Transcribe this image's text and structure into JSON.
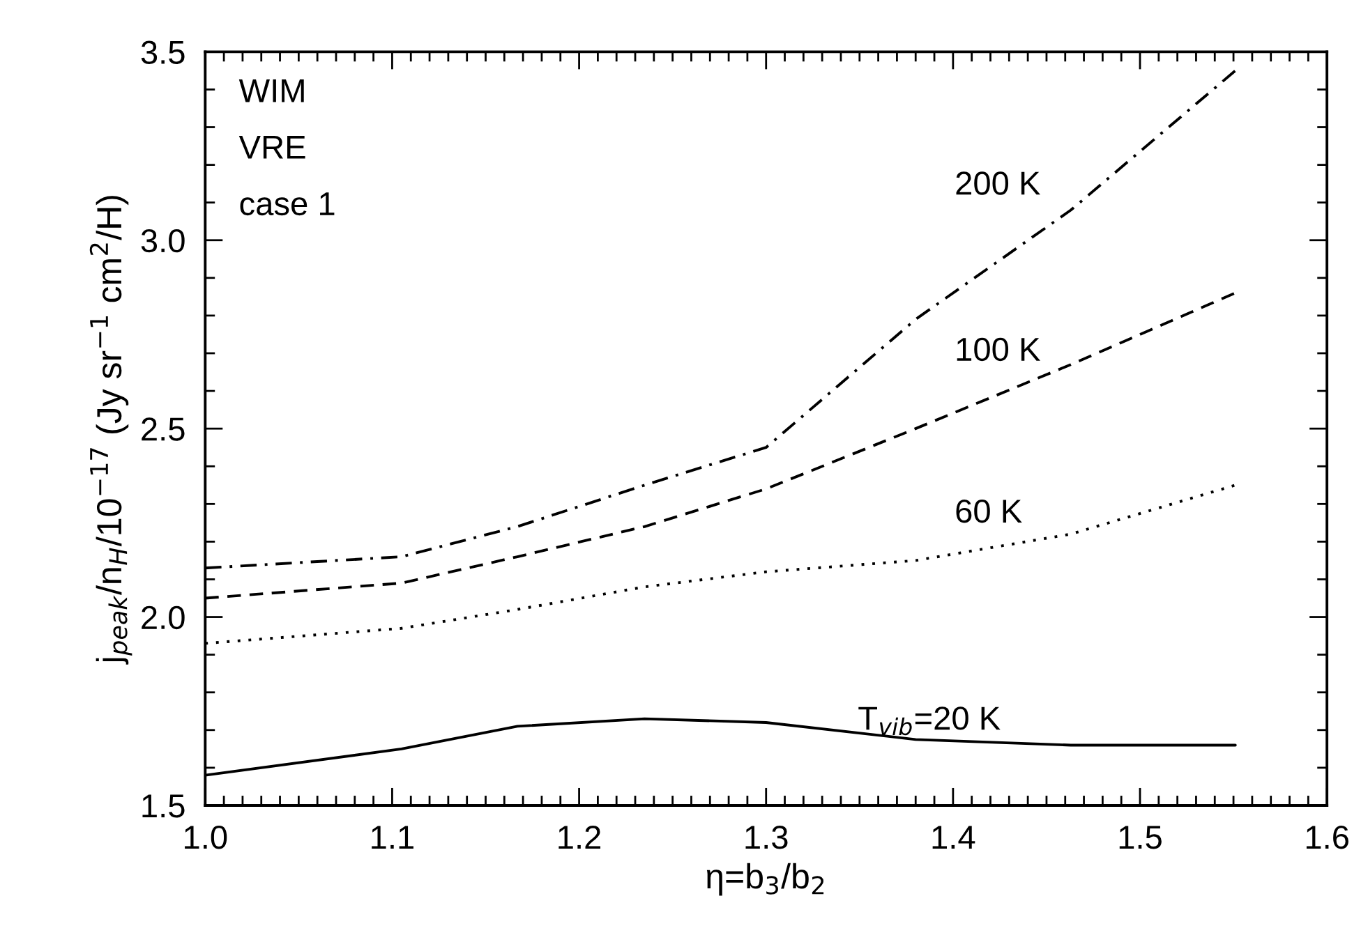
{
  "chart_data": {
    "type": "line",
    "xlabel": "η=b$_{3}$/b$_{2}$",
    "ylabel": "j$_{peak}$/n$_{H}$/10$^{−17}$ (Jy sr$^{−1}$ cm$^{2}$/H)",
    "x": [
      1.0,
      1.105,
      1.167,
      1.235,
      1.3,
      1.38,
      1.463,
      1.551
    ],
    "series": [
      {
        "name": "200 K",
        "color": "#000000",
        "line_style": "dashdot",
        "values": [
          2.13,
          2.16,
          2.24,
          2.35,
          2.45,
          2.79,
          3.08,
          3.45
        ]
      },
      {
        "name": "100 K",
        "color": "#000000",
        "line_style": "dashed",
        "values": [
          2.05,
          2.09,
          2.16,
          2.24,
          2.34,
          2.5,
          2.67,
          2.86
        ]
      },
      {
        "name": "60 K",
        "color": "#000000",
        "line_style": "dotted",
        "values": [
          1.93,
          1.97,
          2.02,
          2.08,
          2.12,
          2.15,
          2.22,
          2.35
        ]
      },
      {
        "name": "T$_{vib}$=20 K",
        "color": "#000000",
        "line_style": "solid",
        "values": [
          1.58,
          1.65,
          1.71,
          1.73,
          1.72,
          1.675,
          1.66,
          1.66
        ]
      }
    ],
    "annotations": [
      "WIM",
      "VRE",
      "case 1"
    ],
    "xlim": [
      1.0,
      1.6
    ],
    "xticks": [
      {
        "value": 1.0,
        "label": "1.0"
      },
      1.1,
      1.2,
      1.3,
      1.4,
      1.5,
      1.6
    ],
    "ylim": [
      1.5,
      3.5
    ],
    "yticks": [
      1.5,
      {
        "value": 2.0,
        "label": "2.0"
      },
      2.5,
      {
        "value": 3.0,
        "label": "3.0"
      },
      3.5
    ],
    "grid": false,
    "legend": false,
    "marker": "none"
  }
}
